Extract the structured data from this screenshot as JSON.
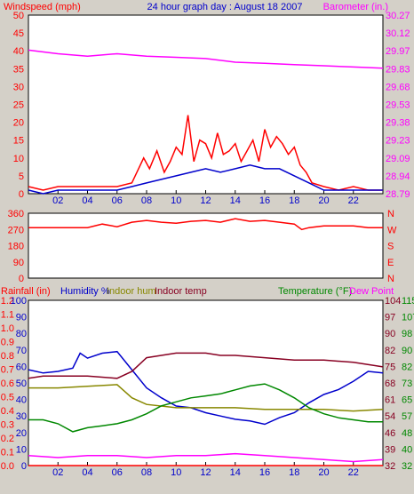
{
  "header": {
    "left_label": "Windspeed (mph)",
    "title": "24 hour graph day : August 18 2007",
    "right_label": "Barometer (in.)"
  },
  "colors": {
    "background": "#d4d0c8",
    "plot_bg": "#ffffff",
    "windspeed": "#ff0000",
    "wind_avg": "#0000cc",
    "barometer": "#ff00ff",
    "wind_dir": "#ff0000",
    "rainfall": "#ff0000",
    "humidity": "#0000cc",
    "indoor_hum": "#888800",
    "indoor_temp": "#880022",
    "temperature": "#008800",
    "dew_point": "#ff00ff"
  },
  "chart_data": [
    {
      "type": "line",
      "x_ticks": [
        "02",
        "04",
        "06",
        "08",
        "10",
        "12",
        "14",
        "16",
        "18",
        "20",
        "22"
      ],
      "xlim": [
        0,
        24
      ],
      "left_axis": {
        "label": "Windspeed (mph)",
        "ylim": [
          0,
          50
        ],
        "ticks": [
          "0",
          "5",
          "10",
          "15",
          "20",
          "25",
          "30",
          "35",
          "40",
          "45",
          "50"
        ]
      },
      "right_axis": {
        "label": "Barometer (in.)",
        "ylim": [
          28.79,
          30.27
        ],
        "ticks": [
          "28.79",
          "28.94",
          "29.09",
          "29.23",
          "29.38",
          "29.53",
          "29.68",
          "29.83",
          "29.97",
          "30.12",
          "30.27"
        ]
      },
      "series": [
        {
          "name": "Windspeed (mph)",
          "axis": "left",
          "color": "#ff0000",
          "x": [
            0,
            1,
            2,
            3,
            4,
            5,
            6,
            7,
            7.8,
            8.2,
            8.7,
            9.2,
            9.6,
            10,
            10.4,
            10.8,
            11.2,
            11.6,
            12,
            12.4,
            12.8,
            13.2,
            13.6,
            14,
            14.4,
            14.8,
            15.2,
            15.6,
            16,
            16.4,
            16.8,
            17.2,
            17.6,
            18,
            18.4,
            18.8,
            19.2,
            20,
            21,
            22,
            23,
            24
          ],
          "y": [
            2,
            1,
            2,
            2,
            2,
            2,
            2,
            3,
            10,
            7,
            12,
            6,
            9,
            13,
            11,
            22,
            9,
            15,
            14,
            10,
            17,
            11,
            12,
            14,
            9,
            12,
            15,
            9,
            18,
            13,
            16,
            14,
            11,
            13,
            8,
            6,
            3,
            2,
            1,
            2,
            1,
            1
          ]
        },
        {
          "name": "Wind avg",
          "axis": "left",
          "color": "#0000cc",
          "x": [
            0,
            1,
            2,
            3,
            4,
            5,
            6,
            7,
            8,
            9,
            10,
            11,
            12,
            13,
            14,
            15,
            16,
            17,
            18,
            19,
            20,
            21,
            22,
            23,
            24
          ],
          "y": [
            1,
            0,
            1,
            1,
            1,
            1,
            1,
            2,
            3,
            4,
            5,
            6,
            7,
            6,
            7,
            8,
            7,
            7,
            5,
            3,
            1,
            1,
            1,
            1,
            1
          ]
        },
        {
          "name": "Barometer (in.)",
          "axis": "right",
          "color": "#ff00ff",
          "x": [
            0,
            2,
            4,
            6,
            8,
            10,
            12,
            14,
            16,
            18,
            20,
            22,
            24
          ],
          "y": [
            29.98,
            29.95,
            29.93,
            29.95,
            29.93,
            29.92,
            29.91,
            29.88,
            29.87,
            29.86,
            29.85,
            29.84,
            29.83
          ]
        }
      ]
    },
    {
      "type": "line",
      "x_ticks": [
        "02",
        "04",
        "06",
        "08",
        "10",
        "12",
        "14",
        "16",
        "18",
        "20",
        "22"
      ],
      "xlim": [
        0,
        24
      ],
      "left_axis": {
        "ylim": [
          0,
          360
        ],
        "ticks": [
          "0",
          "90",
          "180",
          "270",
          "360"
        ]
      },
      "right_axis": {
        "ticks": [
          "N",
          "E",
          "S",
          "W",
          "N"
        ]
      },
      "series": [
        {
          "name": "Wind direction",
          "color": "#ff0000",
          "x": [
            0,
            2,
            4,
            5,
            6,
            7,
            8,
            9,
            10,
            11,
            12,
            13,
            14,
            15,
            16,
            17,
            18,
            18.5,
            19,
            20,
            22,
            23,
            24
          ],
          "y": [
            280,
            280,
            280,
            300,
            285,
            310,
            320,
            310,
            305,
            315,
            320,
            310,
            330,
            315,
            320,
            310,
            300,
            270,
            280,
            290,
            290,
            280,
            280
          ]
        }
      ]
    },
    {
      "type": "line",
      "x_ticks": [
        "02",
        "04",
        "06",
        "08",
        "10",
        "12",
        "14",
        "16",
        "18",
        "20",
        "22"
      ],
      "xlim": [
        0,
        24
      ],
      "legend": [
        "Rainfall (in)",
        "Humidity %",
        "Indoor hum",
        "Indoor temp",
        "Temperature (°F)",
        "Dew Point"
      ],
      "axes": [
        {
          "label": "Rainfall (in)",
          "ylim": [
            0.0,
            1.2
          ],
          "ticks": [
            "0.0",
            "0.1",
            "0.2",
            "0.3",
            "0.4",
            "0.5",
            "0.6",
            "0.7",
            "0.8",
            "0.9",
            "1.0",
            "1.1",
            "1.2"
          ]
        },
        {
          "label": "Humidity %",
          "ylim": [
            0,
            100
          ],
          "ticks": [
            "0",
            "10",
            "20",
            "30",
            "40",
            "50",
            "60",
            "70",
            "80",
            "90",
            "100"
          ]
        },
        {
          "label": "Indoor temp",
          "ylim": [
            32,
            104
          ],
          "ticks": [
            "32",
            "39",
            "46",
            "54",
            "61",
            "68",
            "75",
            "82",
            "90",
            "97",
            "104"
          ]
        },
        {
          "label": "Temperature (°F)",
          "ylim": [
            32,
            115
          ],
          "ticks": [
            "32",
            "40",
            "48",
            "57",
            "65",
            "73",
            "82",
            "90",
            "98",
            "107",
            "115"
          ]
        }
      ],
      "series": [
        {
          "name": "Rainfall (in)",
          "axis": "Rainfall (in)",
          "color": "#ff0000",
          "x": [
            0,
            24
          ],
          "y": [
            0.0,
            0.0
          ]
        },
        {
          "name": "Humidity %",
          "axis": "Humidity %",
          "color": "#0000cc",
          "x": [
            0,
            1,
            2,
            3,
            3.5,
            4,
            5,
            6,
            7,
            8,
            9,
            10,
            11,
            12,
            13,
            14,
            15,
            16,
            17,
            18,
            19,
            20,
            21,
            22,
            23,
            24
          ],
          "y": [
            58,
            56,
            57,
            59,
            68,
            65,
            68,
            69,
            58,
            47,
            41,
            36,
            35,
            32,
            30,
            28,
            27,
            25,
            29,
            32,
            38,
            43,
            46,
            51,
            57,
            56
          ]
        },
        {
          "name": "Indoor hum",
          "axis": "Humidity %",
          "color": "#888800",
          "x": [
            0,
            2,
            4,
            6,
            6.5,
            7,
            8,
            10,
            12,
            14,
            16,
            18,
            20,
            22,
            24
          ],
          "y": [
            47,
            47,
            48,
            49,
            45,
            41,
            37,
            35,
            35,
            35,
            34,
            34,
            34,
            33,
            34
          ]
        },
        {
          "name": "Indoor temp",
          "axis": "Indoor temp",
          "color": "#880022",
          "x": [
            0,
            1,
            2,
            4,
            6,
            7,
            8,
            9,
            10,
            11,
            12,
            13,
            14,
            16,
            18,
            20,
            22,
            24
          ],
          "y": [
            70,
            71,
            71,
            71,
            70,
            73,
            79,
            80,
            81,
            81,
            81,
            80,
            80,
            79,
            78,
            78,
            77,
            75
          ]
        },
        {
          "name": "Temperature (°F)",
          "axis": "Temperature (°F)",
          "color": "#008800",
          "x": [
            0,
            1,
            2,
            3,
            4,
            5,
            6,
            7,
            8,
            9,
            10,
            11,
            12,
            13,
            14,
            15,
            16,
            17,
            18,
            19,
            20,
            21,
            22,
            23,
            24
          ],
          "y": [
            55,
            55,
            53,
            49,
            51,
            52,
            53,
            55,
            58,
            62,
            64,
            66,
            67,
            68,
            70,
            72,
            73,
            70,
            66,
            61,
            58,
            56,
            55,
            54,
            54
          ]
        },
        {
          "name": "Dew Point",
          "axis": "Temperature (°F)",
          "color": "#ff00ff",
          "x": [
            0,
            2,
            4,
            6,
            8,
            10,
            12,
            14,
            16,
            18,
            20,
            22,
            24
          ],
          "y": [
            37,
            36,
            37,
            37,
            36,
            37,
            37,
            38,
            37,
            36,
            35,
            34,
            35
          ]
        }
      ]
    }
  ]
}
